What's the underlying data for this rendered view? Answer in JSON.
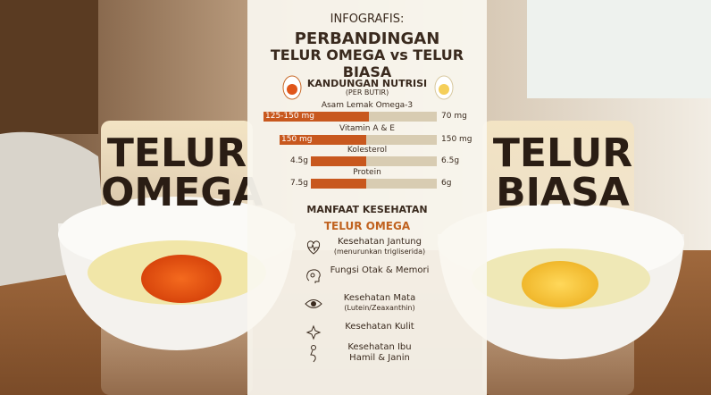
{
  "header": {
    "kicker": "INFOGRAFIS:",
    "title_line1": "PERBANDINGAN",
    "title_line2": "TELUR OMEGA vs TELUR BIASA"
  },
  "left_label": {
    "line1": "TELUR",
    "line2": "OMEGA"
  },
  "right_label": {
    "line1": "TELUR",
    "line2": "BIASA"
  },
  "nutrition": {
    "title": "KANDUNGAN NUTRISI",
    "subtitle": "(PER BUTIR)",
    "rows": [
      {
        "name": "Asam Lemak Omega-3",
        "omega": "125-150 mg",
        "biasa": "70 mg"
      },
      {
        "name": "Vitamin A & E",
        "omega": "150 mg",
        "biasa": "150 mg"
      },
      {
        "name": "Kolesterol",
        "omega": "4.5g",
        "biasa": "6.5g"
      },
      {
        "name": "Protein",
        "omega": "7.5g",
        "biasa": "6g"
      }
    ]
  },
  "benefits": {
    "title": "MANFAAT KESEHATAN",
    "subtitle": "TELUR OMEGA",
    "items": [
      {
        "label": "Kesehatan Jantung",
        "note": "(menurunkan trigliserida)"
      },
      {
        "label": "Fungsi Otak & Memori"
      },
      {
        "label": "Kesehatan Mata",
        "note": "(Lutein/Zeaxanthin)"
      },
      {
        "label": "Kesehatan Kulit"
      },
      {
        "label": "Kesehatan Ibu Hamil & Janin"
      }
    ]
  }
}
